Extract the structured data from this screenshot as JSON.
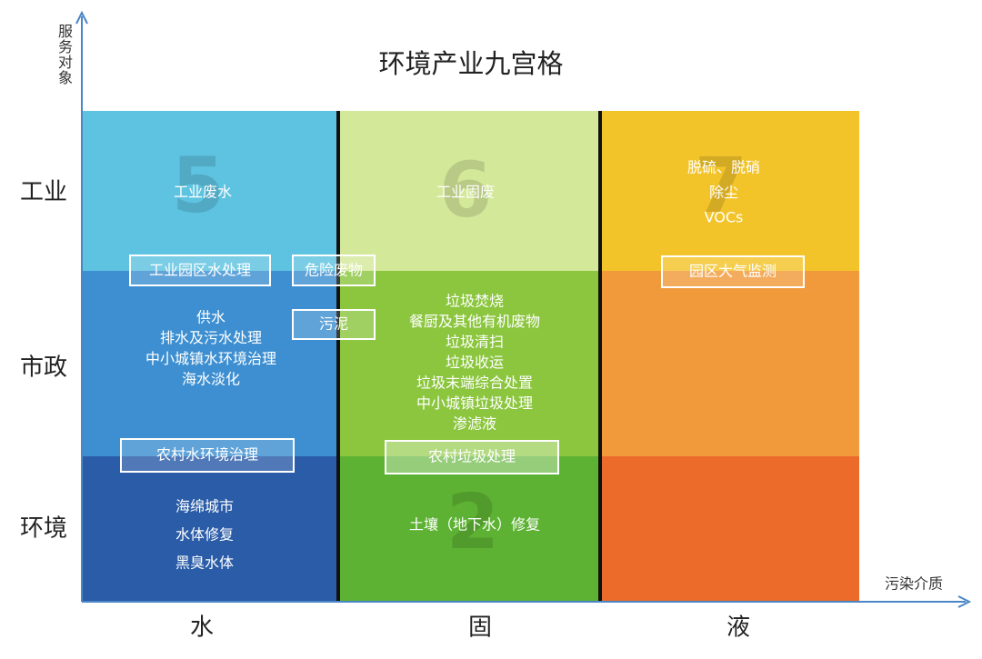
{
  "title": "环境产业九宫格",
  "y_axis_label": "服务对象",
  "x_axis_label": "污染介质",
  "rows": [
    "工业",
    "市政",
    "环境"
  ],
  "columns": [
    "水",
    "固",
    "液"
  ],
  "cells": [
    {
      "number": "5",
      "lines": [
        "工业废水"
      ]
    },
    {
      "number": "6",
      "lines": [
        "工业固废"
      ]
    },
    {
      "number": "7",
      "lines": [
        "脱硫、脱硝",
        "除尘",
        "VOCs"
      ]
    },
    {
      "lines": [
        "供水",
        "排水及污水处理",
        "中小城镇水环境治理",
        "海水淡化"
      ]
    },
    {
      "lines": [
        "垃圾焚烧",
        "餐厨及其他有机废物",
        "垃圾清扫",
        "垃圾收运",
        "垃圾末端综合处置",
        "中小城镇垃圾处理",
        "渗滤液"
      ]
    },
    {
      "lines": [
        "海绵城市",
        "水体修复",
        "黑臭水体"
      ]
    },
    {
      "number": "2",
      "lines": [
        "土壤（地下水）修复"
      ]
    }
  ],
  "boxes": [
    "工业园区水处理",
    "危险废物",
    "污泥",
    "农村水环境治理",
    "农村垃圾处理",
    "园区大气监测"
  ]
}
